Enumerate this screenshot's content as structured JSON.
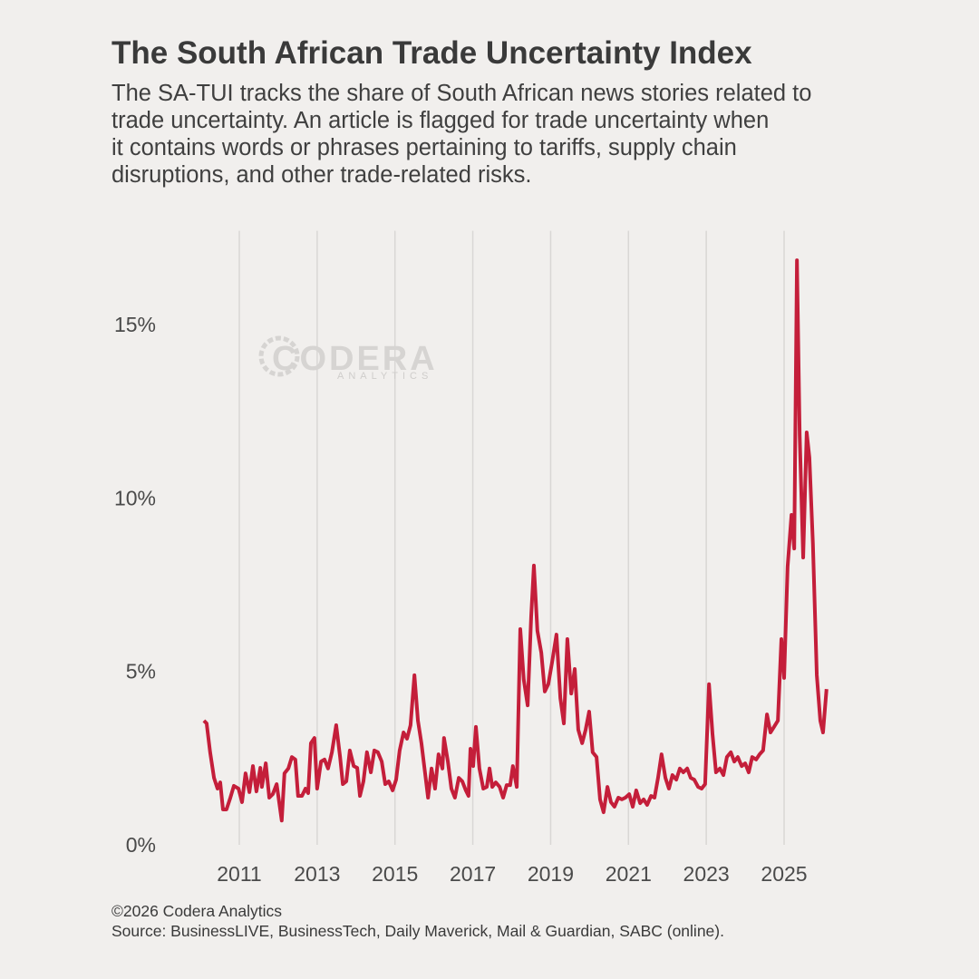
{
  "chart_data": {
    "type": "line",
    "title": "The South African Trade Uncertainty Index",
    "subtitle_lines": [
      "The SA-TUI tracks the share of South African news stories related to",
      "trade uncertainty. An article is flagged for trade uncertainty when",
      "it contains words or phrases pertaining to tariffs, supply chain",
      "disruptions, and other trade-related risks."
    ],
    "watermark": {
      "name": "CODERA",
      "tagline": "ANALYTICS"
    },
    "footer_lines": [
      "©2026 Codera Analytics",
      "Source: BusinessLIVE, BusinessTech, Daily Maverick, Mail & Guardian, SABC (online)."
    ],
    "color": "#c41e3a",
    "grid": true,
    "xlim": [
      2010,
      2026.5
    ],
    "xticks": [
      2011,
      2013,
      2015,
      2017,
      2019,
      2021,
      2023,
      2025
    ],
    "ylim": [
      0,
      17.7
    ],
    "yticks": [
      {
        "value": 0,
        "label": "0%"
      },
      {
        "value": 5,
        "label": "5%"
      },
      {
        "value": 10,
        "label": "10%"
      },
      {
        "value": 15,
        "label": "15%"
      }
    ],
    "x": [
      2010.09,
      2010.16,
      2010.25,
      2010.35,
      2010.44,
      2010.51,
      2010.58,
      2010.67,
      2010.77,
      2010.86,
      2010.98,
      2011.07,
      2011.16,
      2011.26,
      2011.35,
      2011.44,
      2011.54,
      2011.58,
      2011.68,
      2011.77,
      2011.86,
      2011.96,
      2012.09,
      2012.16,
      2012.26,
      2012.35,
      2012.44,
      2012.51,
      2012.61,
      2012.7,
      2012.77,
      2012.84,
      2012.93,
      2013.0,
      2013.1,
      2013.19,
      2013.28,
      2013.38,
      2013.49,
      2013.59,
      2013.66,
      2013.75,
      2013.84,
      2013.94,
      2014.03,
      2014.1,
      2014.19,
      2014.28,
      2014.38,
      2014.47,
      2014.56,
      2014.66,
      2014.75,
      2014.84,
      2014.94,
      2015.03,
      2015.12,
      2015.22,
      2015.31,
      2015.4,
      2015.5,
      2015.59,
      2015.68,
      2015.78,
      2015.85,
      2015.94,
      2016.03,
      2016.12,
      2016.22,
      2016.26,
      2016.36,
      2016.45,
      2016.54,
      2016.64,
      2016.73,
      2016.82,
      2016.89,
      2016.94,
      2017.01,
      2017.08,
      2017.17,
      2017.27,
      2017.36,
      2017.43,
      2017.5,
      2017.59,
      2017.69,
      2017.78,
      2017.87,
      2017.96,
      2018.03,
      2018.13,
      2018.22,
      2018.31,
      2018.41,
      2018.5,
      2018.57,
      2018.66,
      2018.76,
      2018.85,
      2018.94,
      2019.04,
      2019.15,
      2019.25,
      2019.34,
      2019.43,
      2019.53,
      2019.62,
      2019.71,
      2019.81,
      2019.9,
      2019.99,
      2020.08,
      2020.18,
      2020.27,
      2020.36,
      2020.46,
      2020.55,
      2020.64,
      2020.74,
      2020.83,
      2020.92,
      2021.02,
      2021.11,
      2021.2,
      2021.3,
      2021.39,
      2021.48,
      2021.58,
      2021.67,
      2021.76,
      2021.85,
      2021.95,
      2022.04,
      2022.13,
      2022.23,
      2022.32,
      2022.41,
      2022.51,
      2022.6,
      2022.69,
      2022.79,
      2022.88,
      2022.97,
      2023.07,
      2023.16,
      2023.25,
      2023.35,
      2023.44,
      2023.53,
      2023.63,
      2023.72,
      2023.81,
      2023.91,
      2024.0,
      2024.09,
      2024.18,
      2024.28,
      2024.37,
      2024.46,
      2024.56,
      2024.65,
      2024.74,
      2024.84,
      2024.93,
      2025.0,
      2025.09,
      2025.19,
      2025.26,
      2025.33,
      2025.4,
      2025.49,
      2025.58,
      2025.65,
      2025.74,
      2025.84,
      2025.93,
      2026.0,
      2026.09
    ],
    "values": [
      3.58,
      3.5,
      2.67,
      1.93,
      1.62,
      1.8,
      1.02,
      1.02,
      1.36,
      1.7,
      1.62,
      1.23,
      2.06,
      1.52,
      2.27,
      1.54,
      2.22,
      1.67,
      2.35,
      1.36,
      1.46,
      1.75,
      0.7,
      2.06,
      2.2,
      2.53,
      2.46,
      1.41,
      1.41,
      1.62,
      1.49,
      2.93,
      3.08,
      1.62,
      2.4,
      2.46,
      2.2,
      2.67,
      3.45,
      2.53,
      1.75,
      1.83,
      2.72,
      2.27,
      2.22,
      1.41,
      1.83,
      2.67,
      2.09,
      2.72,
      2.67,
      2.4,
      1.75,
      1.83,
      1.57,
      1.88,
      2.72,
      3.24,
      3.06,
      3.45,
      4.89,
      3.58,
      2.93,
      2.01,
      1.36,
      2.2,
      1.62,
      2.61,
      2.2,
      3.08,
      2.4,
      1.62,
      1.36,
      1.93,
      1.83,
      1.57,
      1.41,
      2.77,
      2.27,
      3.4,
      2.2,
      1.62,
      1.67,
      2.2,
      1.67,
      1.8,
      1.67,
      1.36,
      1.72,
      1.72,
      2.27,
      1.67,
      6.22,
      4.76,
      4.02,
      6.58,
      8.05,
      6.17,
      5.54,
      4.42,
      4.63,
      5.28,
      6.06,
      4.23,
      3.5,
      5.93,
      4.36,
      5.07,
      3.32,
      2.93,
      3.32,
      3.84,
      2.67,
      2.53,
      1.31,
      0.94,
      1.67,
      1.23,
      1.1,
      1.36,
      1.31,
      1.36,
      1.46,
      1.1,
      1.57,
      1.2,
      1.31,
      1.15,
      1.41,
      1.36,
      1.93,
      2.61,
      1.93,
      1.62,
      2.01,
      1.88,
      2.2,
      2.09,
      2.2,
      1.93,
      1.88,
      1.67,
      1.62,
      1.75,
      4.63,
      3.19,
      2.09,
      2.2,
      2.01,
      2.53,
      2.67,
      2.4,
      2.53,
      2.27,
      2.35,
      2.09,
      2.53,
      2.46,
      2.61,
      2.72,
      3.76,
      3.24,
      3.4,
      3.58,
      5.93,
      4.81,
      8.02,
      9.51,
      8.54,
      16.85,
      11.81,
      8.28,
      11.89,
      11.16,
      8.68,
      4.89,
      3.58,
      3.24,
      4.49
    ]
  }
}
